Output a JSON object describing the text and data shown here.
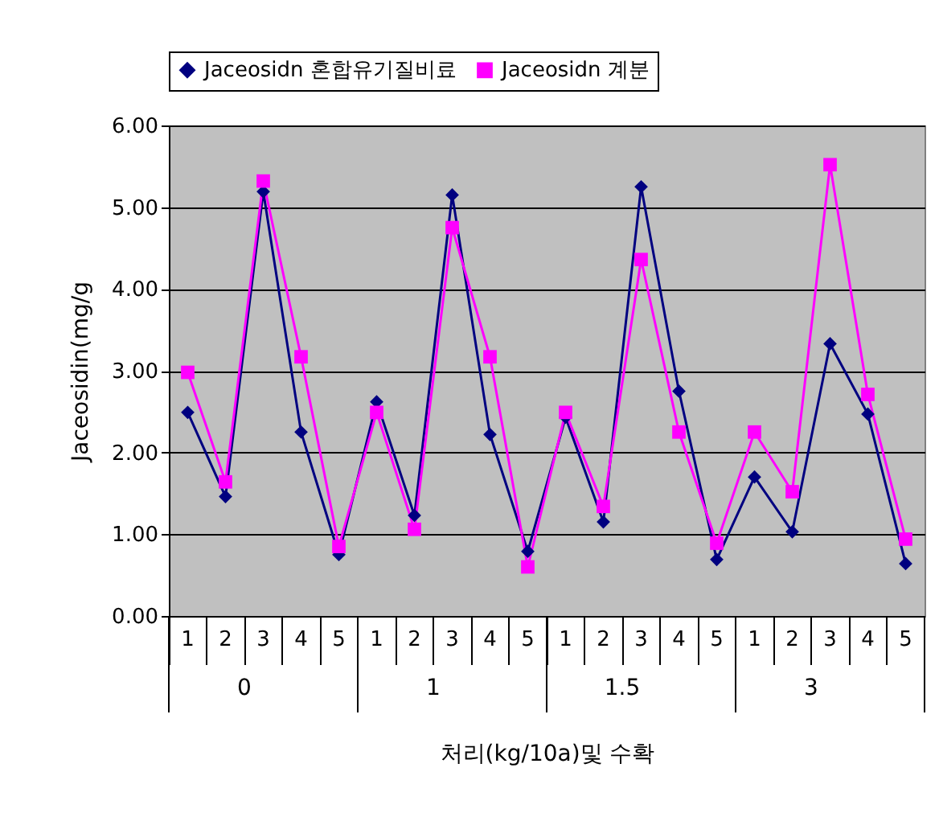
{
  "chart_data": {
    "type": "line",
    "xlabel": "처리(kg/10a)및 수확",
    "ylabel": "Jaceosidin(mg/g",
    "categories": [
      "1",
      "2",
      "3",
      "4",
      "5",
      "1",
      "2",
      "3",
      "4",
      "5",
      "1",
      "2",
      "3",
      "4",
      "5",
      "1",
      "2",
      "3",
      "4",
      "5"
    ],
    "annotations": [
      "0",
      "1",
      "1.5",
      "3"
    ],
    "series": [
      {
        "name": "Jaceosidn 혼합유기질비료",
        "color": "#000080",
        "marker": "diamond",
        "values": [
          2.49,
          1.46,
          5.19,
          2.25,
          0.75,
          2.62,
          1.23,
          5.15,
          2.22,
          0.79,
          2.43,
          1.15,
          5.25,
          2.75,
          0.69,
          1.7,
          1.03,
          3.33,
          2.47,
          0.64
        ]
      },
      {
        "name": "Jaceosidn 계분",
        "color": "#ff00ff",
        "marker": "square",
        "values": [
          2.98,
          1.64,
          5.32,
          3.17,
          0.85,
          2.49,
          1.06,
          4.75,
          3.17,
          0.6,
          2.49,
          1.34,
          4.36,
          2.25,
          0.89,
          2.25,
          1.52,
          5.52,
          2.71,
          0.94
        ]
      }
    ],
    "ylim": [
      0,
      6
    ],
    "yticks": [
      {
        "value": 0,
        "label": "0.00"
      },
      {
        "value": 1,
        "label": "1.00"
      },
      {
        "value": 2,
        "label": "2.00"
      },
      {
        "value": 3,
        "label": "3.00"
      },
      {
        "value": 4,
        "label": "4.00"
      },
      {
        "value": 5,
        "label": "5.00"
      },
      {
        "value": 6,
        "label": "6.00"
      }
    ],
    "grid": "y",
    "legend": "top"
  }
}
